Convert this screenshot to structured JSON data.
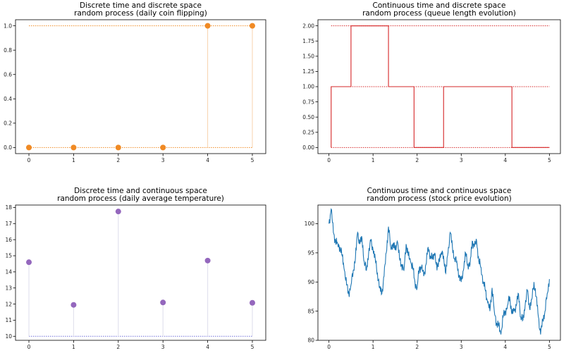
{
  "colors": {
    "orange": "#f08a24",
    "red": "#d62728",
    "purple": "#9467bd",
    "blue": "#1f77b4",
    "stem_orange": "#f7d3ad",
    "stem_purple": "#e2e2ee",
    "baseline_purple": "#6f6fd8"
  },
  "chart_data": [
    {
      "type": "scatter",
      "style": "stem",
      "title_lines": [
        "Discrete time and discrete space",
        "random process (daily coin flipping)"
      ],
      "x": [
        0,
        1,
        2,
        3,
        4,
        5
      ],
      "values": [
        0,
        0,
        0,
        0,
        1,
        1
      ],
      "reference_lines": [
        0,
        1
      ],
      "xlim": [
        -0.3,
        5.3
      ],
      "ylim": [
        -0.05,
        1.05
      ],
      "xticks": [
        "0",
        "1",
        "2",
        "3",
        "4",
        "5"
      ],
      "yticks": [
        "0.0",
        "0.2",
        "0.4",
        "0.6",
        "0.8",
        "1.0"
      ],
      "ytick_values": [
        0,
        0.2,
        0.4,
        0.6,
        0.8,
        1.0
      ],
      "color": "#f08a24"
    },
    {
      "type": "line",
      "style": "step",
      "title_lines": [
        "Continuous time and discrete space",
        "random process (queue length evolution)"
      ],
      "x": [
        0.05,
        0.05,
        0.5,
        0.5,
        1.35,
        1.35,
        1.93,
        1.93,
        2.6,
        2.6,
        4.15,
        4.15,
        5.0
      ],
      "values": [
        0,
        1,
        1,
        2,
        2,
        1,
        1,
        0,
        0,
        1,
        1,
        0,
        0
      ],
      "reference_lines": [
        0,
        1,
        2
      ],
      "xlim": [
        -0.25,
        5.25
      ],
      "ylim": [
        -0.1,
        2.1
      ],
      "xticks": [
        "0",
        "1",
        "2",
        "3",
        "4",
        "5"
      ],
      "yticks": [
        "0.00",
        "0.25",
        "0.50",
        "0.75",
        "1.00",
        "1.25",
        "1.50",
        "1.75",
        "2.00"
      ],
      "ytick_values": [
        0,
        0.25,
        0.5,
        0.75,
        1.0,
        1.25,
        1.5,
        1.75,
        2.0
      ],
      "color": "#d62728"
    },
    {
      "type": "scatter",
      "style": "stem",
      "title_lines": [
        "Discrete time and continuous space",
        "random process (daily average temperature)"
      ],
      "x": [
        0,
        1,
        2,
        3,
        4,
        5
      ],
      "values": [
        14.6,
        11.95,
        17.75,
        12.1,
        14.7,
        12.08
      ],
      "baseline": 10,
      "xlim": [
        -0.3,
        5.3
      ],
      "ylim": [
        9.75,
        18.15
      ],
      "xticks": [
        "0",
        "1",
        "2",
        "3",
        "4",
        "5"
      ],
      "yticks": [
        "10",
        "11",
        "12",
        "13",
        "14",
        "15",
        "16",
        "17",
        "18"
      ],
      "ytick_values": [
        10,
        11,
        12,
        13,
        14,
        15,
        16,
        17,
        18
      ],
      "color": "#9467bd"
    },
    {
      "type": "line",
      "title_lines": [
        "Continuous time and continuous space",
        "random process (stock price evolution)"
      ],
      "x": [
        0,
        0.05,
        0.1,
        0.15,
        0.2,
        0.25,
        0.3,
        0.35,
        0.4,
        0.45,
        0.5,
        0.55,
        0.6,
        0.65,
        0.7,
        0.75,
        0.8,
        0.85,
        0.9,
        0.95,
        1.0,
        1.05,
        1.1,
        1.15,
        1.2,
        1.25,
        1.3,
        1.35,
        1.4,
        1.45,
        1.5,
        1.55,
        1.6,
        1.65,
        1.7,
        1.75,
        1.8,
        1.85,
        1.9,
        1.95,
        2.0,
        2.05,
        2.1,
        2.15,
        2.2,
        2.25,
        2.3,
        2.35,
        2.4,
        2.45,
        2.5,
        2.55,
        2.6,
        2.65,
        2.7,
        2.75,
        2.8,
        2.85,
        2.9,
        2.95,
        3.0,
        3.05,
        3.1,
        3.15,
        3.2,
        3.25,
        3.3,
        3.35,
        3.4,
        3.45,
        3.5,
        3.55,
        3.6,
        3.65,
        3.7,
        3.75,
        3.8,
        3.85,
        3.9,
        3.95,
        4.0,
        4.05,
        4.1,
        4.15,
        4.2,
        4.25,
        4.3,
        4.35,
        4.4,
        4.45,
        4.5,
        4.55,
        4.6,
        4.65,
        4.7,
        4.75,
        4.8,
        4.85,
        4.9,
        4.95,
        5.0
      ],
      "values": [
        100,
        102.5,
        98.5,
        97,
        96.5,
        96,
        94.5,
        92,
        89.5,
        88,
        89.5,
        92,
        94,
        98.5,
        96.5,
        97.5,
        93.5,
        92,
        95,
        97,
        95.5,
        94,
        91.5,
        89,
        88,
        91,
        95,
        99.5,
        96,
        96.5,
        95.5,
        97,
        94,
        93,
        92,
        96.5,
        94.5,
        93.5,
        92.5,
        90,
        89,
        92.5,
        92.5,
        91,
        93,
        96,
        94.5,
        94,
        95,
        92,
        94,
        95,
        94.5,
        91.5,
        95,
        98.5,
        96,
        94,
        93.5,
        91,
        90,
        92,
        95,
        93,
        93,
        97,
        96,
        97,
        93.5,
        92.5,
        90,
        88.5,
        86.5,
        85,
        89,
        85,
        83,
        82.5,
        81,
        84,
        85,
        86,
        87.5,
        84.5,
        85,
        86,
        88,
        84,
        83.5,
        86,
        88.5,
        85.5,
        87,
        90,
        87.5,
        84,
        81,
        83.5,
        85,
        88,
        90.5
      ],
      "xlim": [
        -0.25,
        5.25
      ],
      "ylim": [
        80,
        103.2
      ],
      "xticks": [
        "0",
        "1",
        "2",
        "3",
        "4",
        "5"
      ],
      "yticks": [
        "80",
        "85",
        "90",
        "95",
        "100"
      ],
      "ytick_values": [
        80,
        85,
        90,
        95,
        100
      ],
      "color": "#1f77b4"
    }
  ]
}
